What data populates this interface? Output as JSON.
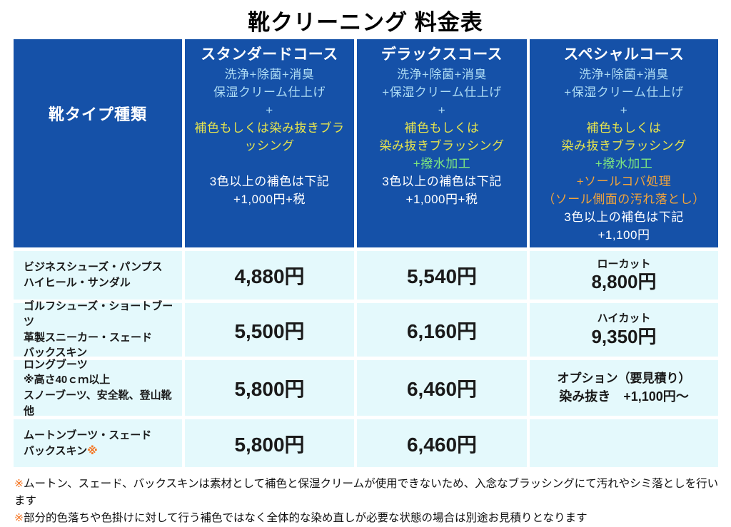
{
  "title": "靴クリーニング 料金表",
  "colors": {
    "header_blue": "#1551a8",
    "cell_cyan": "#e4f9fc",
    "text_lightblue": "#aedcf4",
    "text_yellow": "#e6e44e",
    "text_green": "#7fe97f",
    "text_orange": "#f0a33c",
    "footnote_marker_orange": "#f4731f"
  },
  "table": {
    "row_header": "靴タイプ種類",
    "courses": [
      {
        "name": "スタンダードコース",
        "lines": [
          {
            "text": "洗浄+除菌+消臭",
            "color": "lightblue"
          },
          {
            "text": "保湿クリーム仕上げ",
            "color": "lightblue"
          },
          {
            "text": "+",
            "color": "lightblue"
          },
          {
            "text": "補色もしくは染み抜きブラッシング",
            "color": "yellow"
          },
          {
            "text": "",
            "color": "white"
          },
          {
            "text": "3色以上の補色は下記",
            "color": "white"
          },
          {
            "text": "+1,000円+税",
            "color": "white"
          }
        ]
      },
      {
        "name": "デラックスコース",
        "lines": [
          {
            "text": "洗浄+除菌+消臭",
            "color": "lightblue"
          },
          {
            "text": "+保湿クリーム仕上げ",
            "color": "lightblue"
          },
          {
            "text": "+",
            "color": "lightblue"
          },
          {
            "text": "補色もしくは",
            "color": "yellow"
          },
          {
            "text": "染み抜きブラッシング",
            "color": "yellow"
          },
          {
            "text": "+撥水加工",
            "color": "green"
          },
          {
            "text": "3色以上の補色は下記",
            "color": "white"
          },
          {
            "text": "+1,000円+税",
            "color": "white"
          }
        ]
      },
      {
        "name": "スペシャルコース",
        "lines": [
          {
            "text": "洗浄+除菌+消臭",
            "color": "lightblue"
          },
          {
            "text": "+保湿クリーム仕上げ",
            "color": "lightblue"
          },
          {
            "text": "+",
            "color": "lightblue"
          },
          {
            "text": "補色もしくは",
            "color": "yellow"
          },
          {
            "text": "染み抜きブラッシング",
            "color": "yellow"
          },
          {
            "text": "+撥水加工",
            "color": "green"
          },
          {
            "text": "+ソールコバ処理",
            "color": "orange"
          },
          {
            "text": "（ソール側面の汚れ落とし）",
            "color": "orange"
          },
          {
            "text": "3色以上の補色は下記",
            "color": "white"
          },
          {
            "text": "+1,100円",
            "color": "white"
          }
        ]
      }
    ],
    "rows": [
      {
        "types": [
          "ビジネスシューズ・パンプス",
          "ハイヒール・サンダル"
        ],
        "type_suffix": "",
        "standard": "4,880円",
        "deluxe": "5,540円",
        "special": {
          "label": "ローカット",
          "price": "8,800円"
        }
      },
      {
        "types": [
          "ゴルフシューズ・ショートブーツ",
          "革製スニーカー・スェード",
          "バックスキン"
        ],
        "type_suffix": "",
        "standard": "5,500円",
        "deluxe": "6,160円",
        "special": {
          "label": "ハイカット",
          "price": "9,350円"
        }
      },
      {
        "types": [
          "ロングブーツ",
          "※高さ40ｃｍ以上",
          "スノーブーツ、安全靴、登山靴他"
        ],
        "type_suffix": "",
        "standard": "5,800円",
        "deluxe": "6,460円",
        "special": {
          "label": "オプション（要見積り）",
          "price": "染み抜き　+1,100円〜"
        }
      },
      {
        "types": [
          "ムートンブーツ・スェード",
          "バックスキン"
        ],
        "type_suffix": "※",
        "standard": "5,800円",
        "deluxe": "6,460円",
        "special": {
          "label": "",
          "price": ""
        }
      }
    ]
  },
  "footnotes": [
    {
      "marker": "※",
      "text": "ムートン、スェード、バックスキンは素材として補色と保湿クリームが使用できないため、入念なブラッシングにて汚れやシミ落としを行います"
    },
    {
      "marker": "※",
      "text": "部分的色落ちや色掛けに対して行う補色ではなく全体的な染め直しが必要な状態の場合は別途お見積りとなります"
    }
  ]
}
